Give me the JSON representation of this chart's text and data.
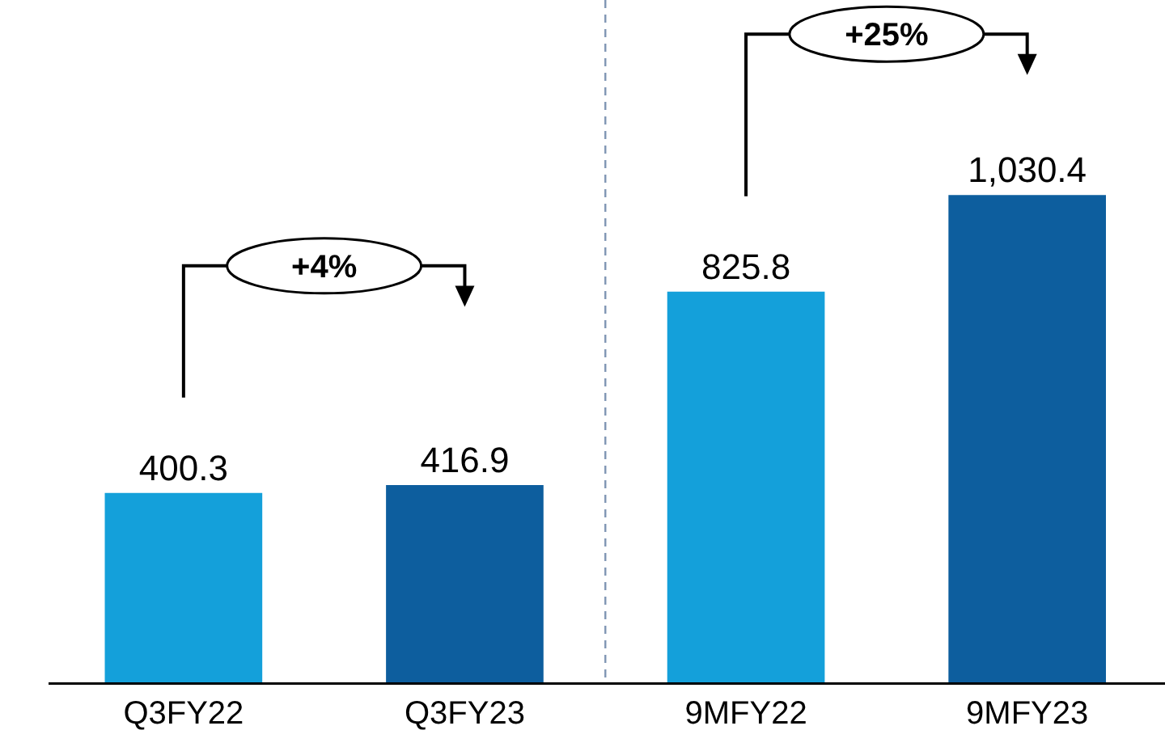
{
  "chart_data": {
    "type": "bar",
    "categories": [
      "Q3FY22",
      "Q3FY23",
      "9MFY22",
      "9MFY23"
    ],
    "values": [
      400.3,
      416.9,
      825.8,
      1030.4
    ],
    "colors": [
      "#14a0da",
      "#0d5e9e",
      "#14a0da",
      "#0d5e9e"
    ],
    "data_labels": true,
    "value_labels": [
      "400.3",
      "416.9",
      "825.8",
      "1,030.4"
    ],
    "annotations": [
      "+4%",
      "+25%"
    ],
    "tick_labels": "x",
    "grid": false
  }
}
